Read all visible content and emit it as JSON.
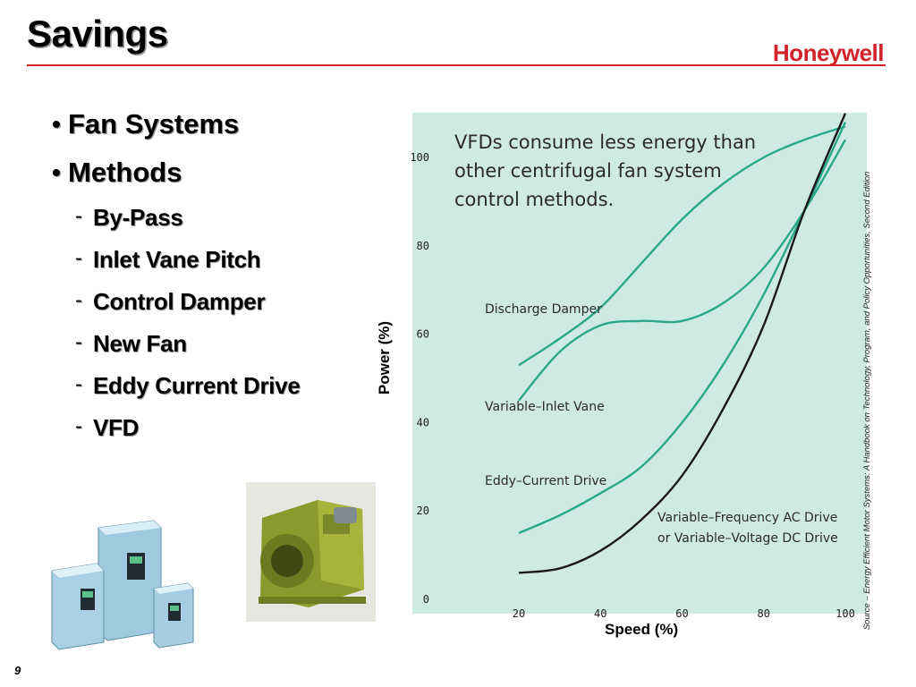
{
  "slide": {
    "title": "Savings",
    "logo_text": "Honeywell",
    "page_number": "9",
    "colors": {
      "accent": "#d2232a",
      "chart_bg": "#cfeae3",
      "curve": "#2aa889",
      "vfd_curve": "#1a1a1a"
    }
  },
  "bullets": [
    {
      "text": "Fan Systems"
    },
    {
      "text": "Methods",
      "children": [
        "By-Pass",
        "Inlet Vane Pitch",
        "Control Damper",
        "New Fan",
        "Eddy Current Drive",
        "VFD"
      ]
    }
  ],
  "images": {
    "drives": "vfd-drives-icon",
    "fan": "centrifugal-fan-icon"
  },
  "chart_data": {
    "type": "line",
    "title": "VFDs consume less energy than other centrifugal fan system control methods.",
    "xlabel": "Speed (%)",
    "ylabel": "Power (%)",
    "xlim": [
      0,
      100
    ],
    "ylim": [
      0,
      110
    ],
    "xticks": [
      0,
      20,
      40,
      60,
      80,
      100
    ],
    "yticks": [
      20,
      40,
      60,
      80,
      100
    ],
    "source": "Source – Energy Efficient Motor Systems: A Handbook on Technology, Program, and Policy Opportunities, Second Edition",
    "series": [
      {
        "name": "Discharge Damper",
        "x": [
          20,
          30,
          40,
          50,
          60,
          70,
          80,
          90,
          100
        ],
        "y": [
          53,
          59,
          66,
          76,
          86,
          94,
          100,
          104,
          107
        ]
      },
      {
        "name": "Variable–Inlet Vane",
        "x": [
          20,
          30,
          40,
          50,
          60,
          70,
          80,
          90,
          100
        ],
        "y": [
          45,
          56,
          62,
          63,
          63,
          67,
          75,
          88,
          104
        ]
      },
      {
        "name": "Eddy–Current Drive",
        "x": [
          20,
          30,
          40,
          50,
          60,
          70,
          80,
          90,
          100
        ],
        "y": [
          15,
          19,
          24,
          30,
          40,
          53,
          69,
          88,
          108
        ]
      },
      {
        "name": "Variable–Frequency AC Drive or Variable–Voltage DC Drive",
        "x": [
          20,
          30,
          40,
          50,
          60,
          70,
          80,
          90,
          100
        ],
        "y": [
          6,
          7,
          11,
          18,
          28,
          43,
          62,
          88,
          110
        ]
      }
    ],
    "curve_labels": {
      "discharge": "Discharge Damper",
      "inlet": "Variable–Inlet Vane",
      "eddy": "Eddy–Current Drive",
      "vfd_line1": "Variable–Frequency AC Drive",
      "vfd_line2": "or Variable–Voltage DC Drive"
    },
    "title_lines": [
      "VFDs consume less energy than",
      "other centrifugal fan system",
      "control methods."
    ]
  }
}
